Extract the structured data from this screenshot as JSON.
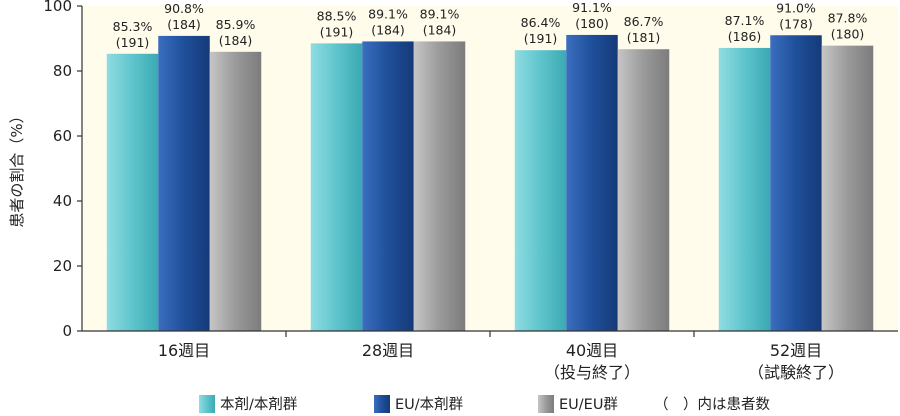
{
  "chart_data": {
    "type": "bar",
    "ylabel": "患者の割合（%）",
    "ylim": [
      0,
      100
    ],
    "yticks": [
      0,
      20,
      40,
      60,
      80,
      100
    ],
    "grid": false,
    "legend_position": "bottom",
    "categories": [
      {
        "lines": [
          "16週目"
        ]
      },
      {
        "lines": [
          "28週目"
        ]
      },
      {
        "lines": [
          "40週目",
          "（投与終了）"
        ]
      },
      {
        "lines": [
          "52週目",
          "（試験終了）"
        ]
      }
    ],
    "series": [
      {
        "name": "本剤/本剤群",
        "color": "#5fc4cc",
        "values": [
          85.3,
          88.5,
          86.4,
          87.1
        ],
        "labels": [
          "85.3%",
          "88.5%",
          "86.4%",
          "87.1%"
        ],
        "n": [
          "(191)",
          "(191)",
          "(191)",
          "(186)"
        ]
      },
      {
        "name": "EU/本剤群",
        "color": "#1f4f9a",
        "values": [
          90.8,
          89.1,
          91.1,
          91.0
        ],
        "labels": [
          "90.8%",
          "89.1%",
          "91.1%",
          "91.0%"
        ],
        "n": [
          "(184)",
          "(184)",
          "(180)",
          "(178)"
        ]
      },
      {
        "name": "EU/EU群",
        "color": "#9a9a9a",
        "values": [
          85.9,
          89.1,
          86.7,
          87.8
        ],
        "labels": [
          "85.9%",
          "89.1%",
          "86.7%",
          "87.8%"
        ],
        "n": [
          "(184)",
          "(184)",
          "(181)",
          "(180)"
        ]
      }
    ],
    "note": "（　）内は患者数"
  }
}
